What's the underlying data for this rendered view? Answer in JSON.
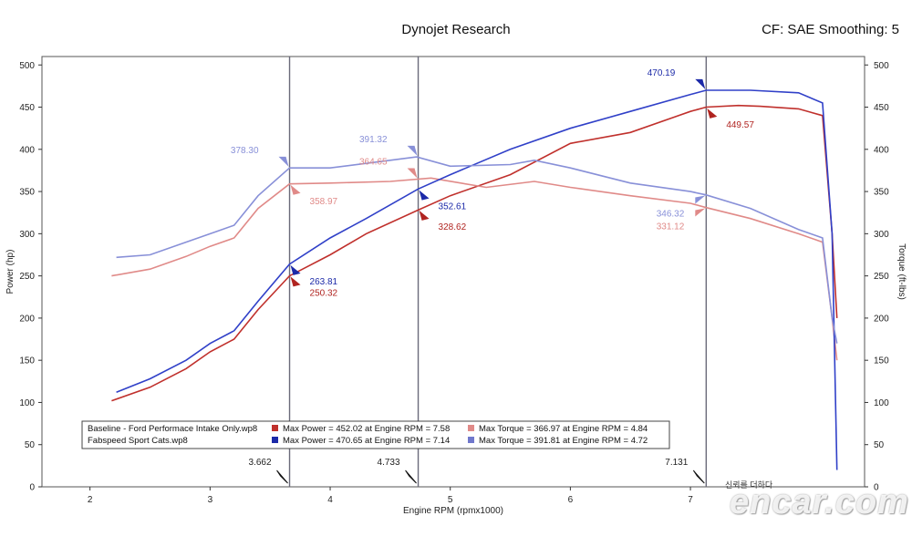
{
  "header": {
    "title": "Dynojet Research",
    "cf_info": "CF: SAE Smoothing: 5"
  },
  "watermark": {
    "site": "encar.com",
    "link_text": "신뢰를 더하다"
  },
  "colors": {
    "baseline_power": "#c0302c",
    "baseline_torque": "#e08a88",
    "fabspeed_power": "#3040c8",
    "fabspeed_torque": "#8890d8"
  },
  "chart_data": {
    "type": "line",
    "xlabel": "Engine RPM (rpmx1000)",
    "ylabel_left": "Power (hp)",
    "ylabel_right": "Torque (ft-lbs)",
    "xlim": [
      1.6,
      8.45
    ],
    "ylim": [
      0,
      510
    ],
    "x_ticks": [
      2,
      3,
      4,
      5,
      6,
      7
    ],
    "y_ticks": [
      0,
      50,
      100,
      150,
      200,
      250,
      300,
      350,
      400,
      450,
      500
    ],
    "cursors": [
      {
        "rpm": 3.662,
        "label": "3.662"
      },
      {
        "rpm": 4.733,
        "label": "4.733"
      },
      {
        "rpm": 7.131,
        "label": "7.131"
      }
    ],
    "series": [
      {
        "name": "Baseline - Ford Performace Intake Only.wp8",
        "metric": "power",
        "color": "#c0302c",
        "x": [
          2.18,
          2.5,
          2.8,
          3.0,
          3.2,
          3.4,
          3.662,
          4.0,
          4.3,
          4.733,
          5.0,
          5.5,
          6.0,
          6.5,
          7.0,
          7.131,
          7.4,
          7.58,
          7.9,
          8.1,
          8.18,
          8.22
        ],
        "y": [
          102,
          118,
          140,
          160,
          175,
          210,
          250,
          275,
          300,
          328,
          345,
          370,
          407,
          420,
          445,
          450,
          452,
          451,
          448,
          440,
          300,
          200
        ]
      },
      {
        "name": "Baseline - Ford Performace Intake Only.wp8",
        "metric": "torque",
        "color": "#e08a88",
        "x": [
          2.18,
          2.5,
          2.8,
          3.0,
          3.2,
          3.4,
          3.662,
          4.0,
          4.5,
          4.84,
          5.3,
          5.7,
          6.0,
          6.5,
          7.0,
          7.131,
          7.5,
          7.9,
          8.1,
          8.18,
          8.22
        ],
        "y": [
          250,
          258,
          273,
          285,
          295,
          330,
          359,
          360,
          362,
          366,
          355,
          362,
          355,
          345,
          336,
          331,
          318,
          300,
          290,
          200,
          150
        ]
      },
      {
        "name": "Fabspeed Sport Cats.wp8",
        "metric": "power",
        "color": "#3040c8",
        "x": [
          2.22,
          2.5,
          2.8,
          3.0,
          3.2,
          3.4,
          3.662,
          4.0,
          4.3,
          4.733,
          5.0,
          5.5,
          6.0,
          6.5,
          7.0,
          7.131,
          7.5,
          7.9,
          8.1,
          8.18,
          8.22
        ],
        "y": [
          112,
          128,
          150,
          170,
          185,
          220,
          264,
          295,
          318,
          353,
          370,
          400,
          425,
          445,
          465,
          470,
          470,
          467,
          455,
          300,
          20
        ]
      },
      {
        "name": "Fabspeed Sport Cats.wp8",
        "metric": "torque",
        "color": "#8890d8",
        "x": [
          2.22,
          2.5,
          2.8,
          3.0,
          3.2,
          3.4,
          3.662,
          4.0,
          4.5,
          4.72,
          5.0,
          5.5,
          5.7,
          6.0,
          6.5,
          7.0,
          7.131,
          7.5,
          7.9,
          8.1,
          8.18,
          8.22
        ],
        "y": [
          272,
          275,
          290,
          300,
          310,
          345,
          378,
          378,
          387,
          391,
          380,
          382,
          387,
          378,
          360,
          350,
          346,
          330,
          305,
          295,
          200,
          170
        ]
      }
    ],
    "annotations": [
      {
        "text": "378.30",
        "x": 3.662,
        "y": 378.3,
        "series": 3,
        "side": "left"
      },
      {
        "text": "358.97",
        "x": 3.662,
        "y": 358.97,
        "series": 1,
        "side": "below-right"
      },
      {
        "text": "263.81",
        "x": 3.662,
        "y": 263.81,
        "series": 2,
        "side": "below-right"
      },
      {
        "text": "250.32",
        "x": 3.662,
        "y": 250.32,
        "series": 0,
        "side": "below-right"
      },
      {
        "text": "391.32",
        "x": 4.733,
        "y": 391.32,
        "series": 3,
        "side": "left"
      },
      {
        "text": "364.65",
        "x": 4.733,
        "y": 364.65,
        "series": 1,
        "side": "left"
      },
      {
        "text": "352.61",
        "x": 4.733,
        "y": 352.61,
        "series": 2,
        "side": "below-right"
      },
      {
        "text": "328.62",
        "x": 4.733,
        "y": 328.62,
        "series": 0,
        "side": "below-right"
      },
      {
        "text": "470.19",
        "x": 7.131,
        "y": 470.19,
        "series": 2,
        "side": "left"
      },
      {
        "text": "449.57",
        "x": 7.131,
        "y": 449.57,
        "series": 0,
        "side": "below-right"
      },
      {
        "text": "346.32",
        "x": 7.131,
        "y": 346.32,
        "series": 3,
        "side": "below-left"
      },
      {
        "text": "331.12",
        "x": 7.131,
        "y": 331.12,
        "series": 1,
        "side": "below-left"
      }
    ],
    "legend": {
      "placement": "bottom-left",
      "rows": [
        {
          "file": "Baseline - Ford Performace Intake Only.wp8",
          "power": "Max Power = 452.02 at Engine RPM = 7.58",
          "torque": "Max Torque = 366.97 at Engine RPM = 4.84",
          "power_color": "#c0302c",
          "torque_color": "#e08a88"
        },
        {
          "file": "Fabspeed Sport Cats.wp8",
          "power": "Max Power = 470.65 at Engine RPM = 7.14",
          "torque": "Max Torque = 391.81 at Engine RPM = 4.72",
          "power_color": "#1c2aa8",
          "torque_color": "#7078cc"
        }
      ]
    },
    "grid": false
  }
}
